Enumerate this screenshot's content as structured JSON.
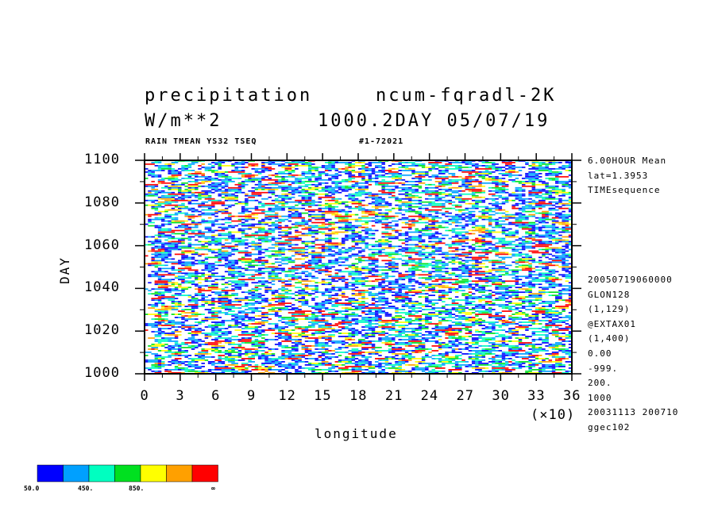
{
  "header": {
    "title_left": "precipitation",
    "title_right": "ncum-fqradl-2K",
    "unit": "W/m**2",
    "run_info": "1000.2DAY 05/07/19",
    "sub_left": "RAIN TMEAN YS32 TSEQ",
    "sub_right": "#1-72021"
  },
  "side_info": {
    "top": [
      "6.00HOUR Mean",
      "lat=1.3953",
      "TIMEsequence"
    ],
    "bottom": [
      "20050719060000",
      "GLON128",
      "(1,129)",
      "@EXTAX01",
      "(1,400)",
      "0.00",
      "-999.",
      "200.",
      "1000",
      "20031113 200710",
      "ggec102"
    ]
  },
  "colors": {
    "levels": [
      "#0000ff",
      "#00a0ff",
      "#00ffc0",
      "#00e020",
      "#ffff00",
      "#ffa000",
      "#ff0000"
    ]
  },
  "colorbar": {
    "labels": [
      "50.0",
      "450.",
      "850.",
      "∞"
    ]
  },
  "chart_data": {
    "type": "heatmap",
    "title": "precipitation",
    "xlabel": "longitude",
    "ylabel": "DAY",
    "x_multiplier": "(×10)",
    "xlim": [
      0,
      36
    ],
    "ylim": [
      1000,
      1100
    ],
    "xticks": [
      "0",
      "3",
      "6",
      "9",
      "12",
      "15",
      "18",
      "21",
      "24",
      "27",
      "30",
      "33",
      "36"
    ],
    "yticks": [
      "1000",
      "1020",
      "1040",
      "1060",
      "1080",
      "1100"
    ],
    "contour_levels": [
      50,
      250,
      450,
      650,
      850,
      1050
    ]
  }
}
